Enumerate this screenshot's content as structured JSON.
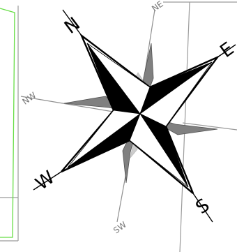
{
  "compass_rose": {
    "cardinal": {
      "north": "N",
      "east": "E",
      "south": "S",
      "west": "W"
    },
    "intercardinal": {
      "northeast": "NE",
      "northwest": "NW",
      "southwest": "SW"
    }
  },
  "colors": {
    "background": "#ffffff",
    "grid_line": "#9a9a9a",
    "highlight_outline": "#66dd44",
    "rose_dark": "#000000",
    "rose_mid": "#808080",
    "rose_light": "#cccccc"
  }
}
